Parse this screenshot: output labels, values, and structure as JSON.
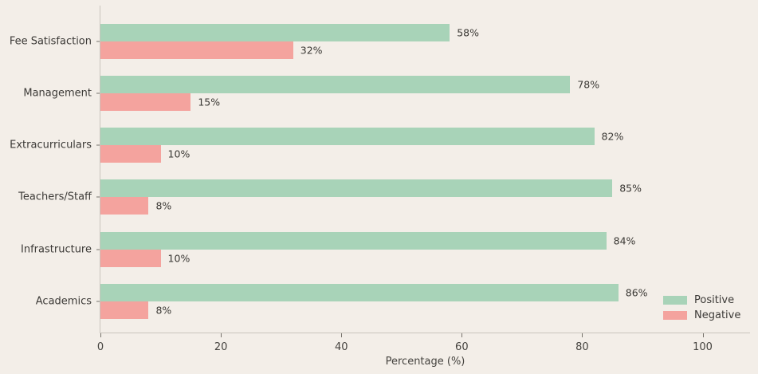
{
  "colors": {
    "background": "#f3eee8",
    "positive": "#a8d3b8",
    "negative": "#f4a39e",
    "spine": "#c9c4bd",
    "text": "#3c3a37"
  },
  "chart_data": {
    "type": "bar",
    "orientation": "horizontal",
    "title": "",
    "categories": [
      "Fee Satisfaction",
      "Management",
      "Extracurriculars",
      "Teachers/Staff",
      "Infrastructure",
      "Academics"
    ],
    "series": [
      {
        "name": "Positive",
        "color": "#a8d3b8",
        "values": [
          58,
          78,
          82,
          85,
          84,
          86
        ],
        "labels": [
          "58%",
          "78%",
          "82%",
          "85%",
          "84%",
          "86%"
        ]
      },
      {
        "name": "Negative",
        "color": "#f4a39e",
        "values": [
          32,
          15,
          10,
          8,
          10,
          8
        ],
        "labels": [
          "32%",
          "15%",
          "10%",
          "8%",
          "10%",
          "8%"
        ]
      }
    ],
    "xlabel": "Percentage (%)",
    "x_ticks": [
      0,
      20,
      40,
      60,
      80,
      100
    ],
    "xlim": [
      0,
      108
    ],
    "grid": false,
    "legend": {
      "position": "lower right",
      "entries": [
        "Positive",
        "Negative"
      ]
    }
  }
}
